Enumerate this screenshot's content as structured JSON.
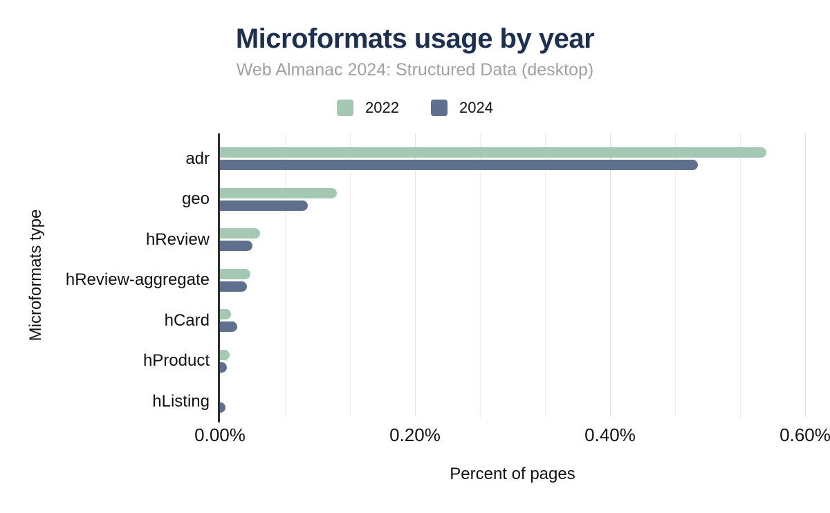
{
  "chart_data": {
    "type": "bar",
    "orientation": "horizontal",
    "title": "Microformats usage by year",
    "subtitle": "Web Almanac 2024: Structured Data (desktop)",
    "xlabel": "Percent of pages",
    "ylabel": "Microformats type",
    "categories": [
      "adr",
      "geo",
      "hReview",
      "hReview-aggregate",
      "hCard",
      "hProduct",
      "hListing"
    ],
    "series": [
      {
        "name": "2022",
        "color": "#a5c8b4",
        "values": [
          0.56,
          0.12,
          0.041,
          0.031,
          0.011,
          0.01,
          0.0
        ]
      },
      {
        "name": "2024",
        "color": "#5e708e",
        "values": [
          0.49,
          0.09,
          0.033,
          0.028,
          0.018,
          0.007,
          0.006
        ]
      }
    ],
    "xlim": [
      0,
      0.6
    ],
    "x_ticks": [
      "0.00%",
      "0.20%",
      "0.40%",
      "0.60%"
    ],
    "grid": true,
    "grid_divisions": 9,
    "major_grid_every": 3,
    "legend_position": "top"
  },
  "colors": {
    "title": "#1e3050",
    "subtitle": "#a1a1a1",
    "axis_line": "#2e2e2e",
    "grid_minor": "#eeeeee",
    "grid_major": "#e3e3e3",
    "text": "#111111",
    "background": "#ffffff"
  }
}
